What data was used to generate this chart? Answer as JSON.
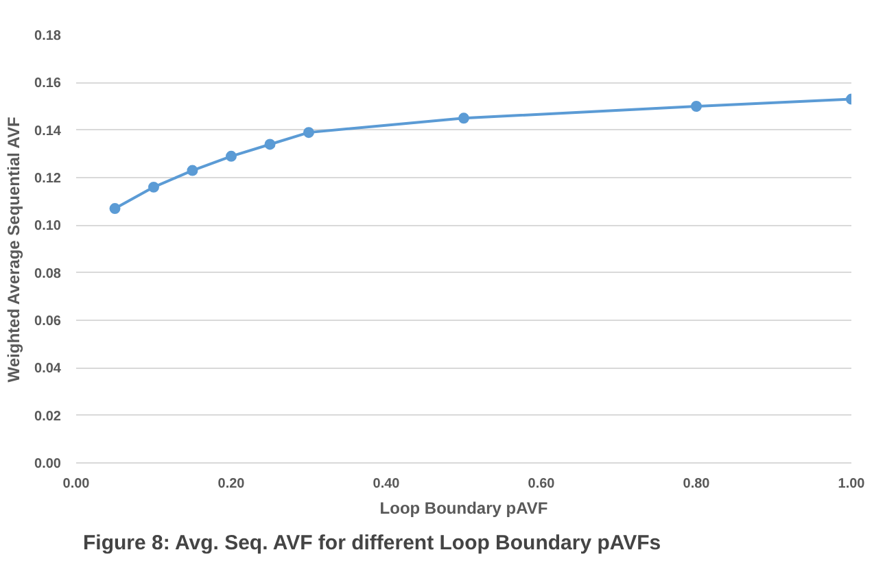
{
  "chart_data": {
    "type": "line",
    "xlabel": "Loop Boundary pAVF",
    "ylabel": "Weighted Average Sequential AVF",
    "x": [
      0.05,
      0.1,
      0.15,
      0.2,
      0.25,
      0.3,
      0.5,
      0.8,
      1.0
    ],
    "series": [
      {
        "color": "#5b9bd5",
        "values": [
          0.107,
          0.116,
          0.123,
          0.129,
          0.134,
          0.139,
          0.145,
          0.15,
          0.153
        ]
      }
    ],
    "xlim": [
      0,
      1
    ],
    "xticks": [
      {
        "value": 0,
        "label": "0.00"
      },
      {
        "value": 0.2,
        "label": "0.20"
      },
      {
        "value": 0.4,
        "label": "0.40"
      },
      {
        "value": 0.6,
        "label": "0.60"
      },
      {
        "value": 0.8,
        "label": "0.80"
      },
      {
        "value": 1,
        "label": "1.00"
      }
    ],
    "ylim": [
      0,
      0.18
    ],
    "yticks": [
      {
        "value": 0,
        "label": "0.00"
      },
      {
        "value": 0.02,
        "label": "0.02"
      },
      {
        "value": 0.04,
        "label": "0.04"
      },
      {
        "value": 0.06,
        "label": "0.06"
      },
      {
        "value": 0.08,
        "label": "0.08"
      },
      {
        "value": 0.1,
        "label": "0.10"
      },
      {
        "value": 0.12,
        "label": "0.12"
      },
      {
        "value": 0.14,
        "label": "0.14"
      },
      {
        "value": 0.16,
        "label": "0.16"
      },
      {
        "value": 0.18,
        "label": "0.18"
      }
    ],
    "grid": "y",
    "marker": "circle",
    "line_style": "solid",
    "annotations": [
      "Figure 8: Avg. Seq. AVF for different Loop Boundary pAVFs"
    ]
  }
}
